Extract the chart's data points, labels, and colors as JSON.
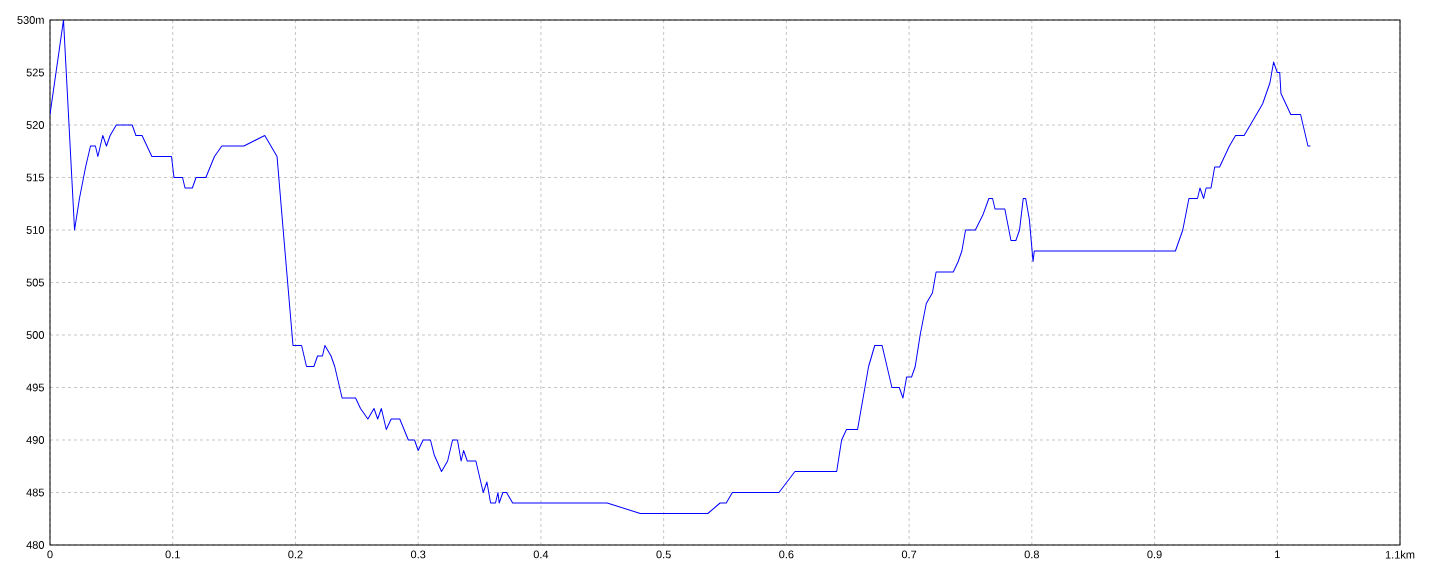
{
  "chart_data": {
    "type": "line",
    "x": [
      0,
      0.011,
      0.02,
      0.024,
      0.029,
      0.033,
      0.037,
      0.039,
      0.043,
      0.046,
      0.049,
      0.054,
      0.067,
      0.07,
      0.075,
      0.083,
      0.099,
      0.101,
      0.108,
      0.11,
      0.116,
      0.119,
      0.127,
      0.134,
      0.14,
      0.158,
      0.175,
      0.185,
      0.19,
      0.198,
      0.205,
      0.209,
      0.215,
      0.218,
      0.222,
      0.224,
      0.229,
      0.232,
      0.238,
      0.249,
      0.253,
      0.259,
      0.264,
      0.267,
      0.27,
      0.274,
      0.278,
      0.285,
      0.292,
      0.297,
      0.3,
      0.304,
      0.31,
      0.313,
      0.319,
      0.324,
      0.328,
      0.332,
      0.335,
      0.337,
      0.34,
      0.347,
      0.351,
      0.353,
      0.356,
      0.359,
      0.363,
      0.365,
      0.366,
      0.369,
      0.372,
      0.377,
      0.454,
      0.481,
      0.536,
      0.546,
      0.551,
      0.556,
      0.594,
      0.607,
      0.641,
      0.645,
      0.649,
      0.658,
      0.667,
      0.672,
      0.678,
      0.682,
      0.686,
      0.692,
      0.695,
      0.698,
      0.702,
      0.705,
      0.709,
      0.714,
      0.719,
      0.722,
      0.736,
      0.74,
      0.743,
      0.746,
      0.754,
      0.76,
      0.765,
      0.768,
      0.77,
      0.778,
      0.783,
      0.787,
      0.79,
      0.793,
      0.795,
      0.798,
      0.801,
      0.802,
      0.917,
      0.923,
      0.928,
      0.935,
      0.937,
      0.94,
      0.942,
      0.946,
      0.949,
      0.953,
      0.957,
      0.961,
      0.966,
      0.973,
      0.988,
      0.994,
      0.997,
      1.0,
      1.002,
      1.003,
      1.007,
      1.011,
      1.019,
      1.023,
      1.025,
      1.027
    ],
    "series": [
      {
        "color": "#0000ff",
        "values": [
          521,
          530,
          510,
          513,
          516,
          518,
          518,
          517,
          519,
          518,
          519,
          520,
          520,
          519,
          519,
          517,
          517,
          515,
          515,
          514,
          514,
          515,
          515,
          517,
          518,
          518,
          519,
          517,
          510,
          499,
          499,
          497,
          497,
          498,
          498,
          499,
          498,
          497,
          494,
          494,
          493,
          492,
          493,
          492,
          493,
          491,
          492,
          492,
          490,
          490,
          489,
          490,
          490,
          488.6,
          487,
          488,
          490,
          490,
          488,
          489,
          488,
          488,
          486,
          485,
          486,
          484,
          484,
          485,
          484,
          485,
          485,
          484,
          484,
          483,
          483,
          484,
          484,
          485,
          485,
          487,
          487,
          490,
          491,
          491,
          497,
          499,
          499,
          497,
          495,
          495,
          494,
          496,
          496,
          497,
          500,
          503,
          504,
          506,
          506,
          507,
          508,
          510,
          510,
          511.4,
          513,
          513,
          512,
          512,
          509,
          509,
          510,
          513,
          513,
          511,
          507,
          508,
          508,
          510,
          513,
          513,
          514,
          513,
          514,
          514,
          516,
          516,
          517,
          518,
          519,
          519,
          522,
          524,
          526,
          525,
          525,
          523,
          522,
          521,
          521,
          519,
          518,
          518
        ]
      }
    ],
    "xlim": [
      0,
      1.1
    ],
    "ylim": [
      480,
      530
    ],
    "xticks": [
      0,
      0.1,
      0.2,
      0.3,
      0.4,
      0.5,
      0.6,
      0.7,
      0.8,
      0.9,
      1,
      {
        "value": 1.1,
        "label": "1.1km"
      }
    ],
    "yticks": [
      480,
      485,
      490,
      495,
      500,
      505,
      510,
      515,
      520,
      525,
      {
        "value": 530,
        "label": "530m"
      }
    ],
    "grid": true
  }
}
